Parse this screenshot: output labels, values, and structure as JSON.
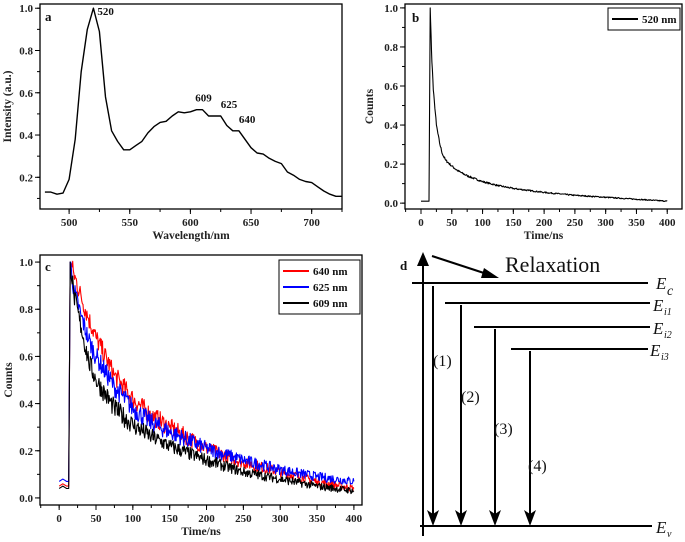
{
  "chart_data": [
    {
      "panel": "a",
      "type": "line",
      "xlabel": "Wavelength/nm",
      "ylabel": "Intensity (a.u.)",
      "xlim": [
        476,
        725
      ],
      "ylim": [
        0.05,
        1.02
      ],
      "xticks": [
        500,
        550,
        600,
        650,
        700
      ],
      "yticks": [
        0.2,
        0.4,
        0.6,
        0.8,
        1.0
      ],
      "grid": false,
      "annotations": [
        {
          "text": "520",
          "x": 520,
          "y": 1.0
        },
        {
          "text": "609",
          "x": 609,
          "y": 0.52
        },
        {
          "text": "625",
          "x": 625,
          "y": 0.49
        },
        {
          "text": "640",
          "x": 640,
          "y": 0.42
        }
      ],
      "series": [
        {
          "color": "#000000",
          "x": [
            480,
            485,
            490,
            495,
            500,
            505,
            510,
            515,
            520,
            525,
            530,
            535,
            540,
            545,
            550,
            555,
            560,
            565,
            570,
            575,
            580,
            585,
            590,
            595,
            600,
            605,
            610,
            615,
            620,
            625,
            630,
            635,
            640,
            645,
            650,
            655,
            660,
            665,
            670,
            675,
            680,
            685,
            690,
            695,
            700,
            705,
            710,
            715,
            720,
            725
          ],
          "y": [
            0.13,
            0.13,
            0.12,
            0.125,
            0.19,
            0.38,
            0.7,
            0.9,
            1.0,
            0.89,
            0.58,
            0.42,
            0.37,
            0.33,
            0.33,
            0.35,
            0.37,
            0.41,
            0.44,
            0.46,
            0.465,
            0.49,
            0.51,
            0.505,
            0.51,
            0.52,
            0.52,
            0.49,
            0.49,
            0.49,
            0.445,
            0.42,
            0.42,
            0.38,
            0.34,
            0.315,
            0.31,
            0.29,
            0.275,
            0.265,
            0.225,
            0.21,
            0.19,
            0.18,
            0.175,
            0.155,
            0.135,
            0.12,
            0.11,
            0.11
          ]
        }
      ]
    },
    {
      "panel": "b",
      "type": "line",
      "xlabel": "Time/ns",
      "ylabel": "Counts",
      "xlim": [
        -26,
        424
      ],
      "ylim": [
        -0.03,
        1.02
      ],
      "xticks": [
        0,
        50,
        100,
        150,
        200,
        250,
        300,
        350,
        400
      ],
      "yticks": [
        0.0,
        0.2,
        0.4,
        0.6,
        0.8,
        1.0
      ],
      "grid": false,
      "legend": "top-right",
      "series": [
        {
          "name": "520 nm",
          "color": "#000000",
          "x": [
            0,
            5,
            10,
            13,
            15,
            17,
            20,
            25,
            30,
            35,
            40,
            50,
            60,
            75,
            100,
            125,
            150,
            175,
            200,
            250,
            300,
            350,
            400
          ],
          "y": [
            0.01,
            0.01,
            0.01,
            0.01,
            1.0,
            0.78,
            0.58,
            0.4,
            0.31,
            0.25,
            0.22,
            0.19,
            0.165,
            0.14,
            0.11,
            0.09,
            0.075,
            0.065,
            0.055,
            0.04,
            0.03,
            0.02,
            0.01
          ]
        }
      ]
    },
    {
      "panel": "c",
      "type": "line",
      "xlabel": "Time/ns",
      "ylabel": "Counts",
      "xlim": [
        -26,
        411
      ],
      "ylim": [
        -0.03,
        1.03
      ],
      "xticks": [
        0,
        50,
        100,
        150,
        200,
        250,
        300,
        350,
        400
      ],
      "yticks": [
        0.0,
        0.2,
        0.4,
        0.6,
        0.8,
        1.0
      ],
      "grid": false,
      "legend": "top-right",
      "series": [
        {
          "name": "640 nm",
          "color": "#ff0000",
          "x": [
            0,
            5,
            10,
            13,
            15,
            20,
            30,
            40,
            50,
            75,
            100,
            125,
            150,
            200,
            250,
            300,
            350,
            400
          ],
          "y": [
            0.05,
            0.06,
            0.05,
            0.05,
            1.0,
            0.95,
            0.85,
            0.76,
            0.68,
            0.52,
            0.42,
            0.35,
            0.3,
            0.21,
            0.15,
            0.11,
            0.07,
            0.04
          ]
        },
        {
          "name": "625 nm",
          "color": "#0000ff",
          "x": [
            0,
            5,
            10,
            13,
            15,
            20,
            30,
            40,
            50,
            75,
            100,
            125,
            150,
            200,
            250,
            300,
            350,
            400
          ],
          "y": [
            0.07,
            0.08,
            0.07,
            0.07,
            1.0,
            0.88,
            0.77,
            0.67,
            0.6,
            0.47,
            0.38,
            0.32,
            0.28,
            0.21,
            0.16,
            0.12,
            0.09,
            0.07
          ]
        },
        {
          "name": "609 nm",
          "color": "#000000",
          "x": [
            0,
            5,
            10,
            13,
            15,
            20,
            30,
            40,
            50,
            75,
            100,
            125,
            150,
            200,
            250,
            300,
            350,
            400
          ],
          "y": [
            0.04,
            0.05,
            0.04,
            0.04,
            1.0,
            0.86,
            0.72,
            0.58,
            0.5,
            0.38,
            0.31,
            0.26,
            0.22,
            0.16,
            0.11,
            0.08,
            0.05,
            0.03
          ]
        }
      ]
    }
  ],
  "panel_labels": {
    "a": "a",
    "b": "b",
    "c": "c",
    "d": "d"
  },
  "diagram": {
    "relaxation": "Relaxation",
    "levels": [
      {
        "main": "E",
        "sub": "c"
      },
      {
        "main": "E",
        "sub": "i1"
      },
      {
        "main": "E",
        "sub": "i2"
      },
      {
        "main": "E",
        "sub": "i3"
      },
      {
        "main": "E",
        "sub": "v"
      }
    ],
    "transitions": [
      "(1)",
      "(2)",
      "(3)",
      "(4)"
    ]
  }
}
